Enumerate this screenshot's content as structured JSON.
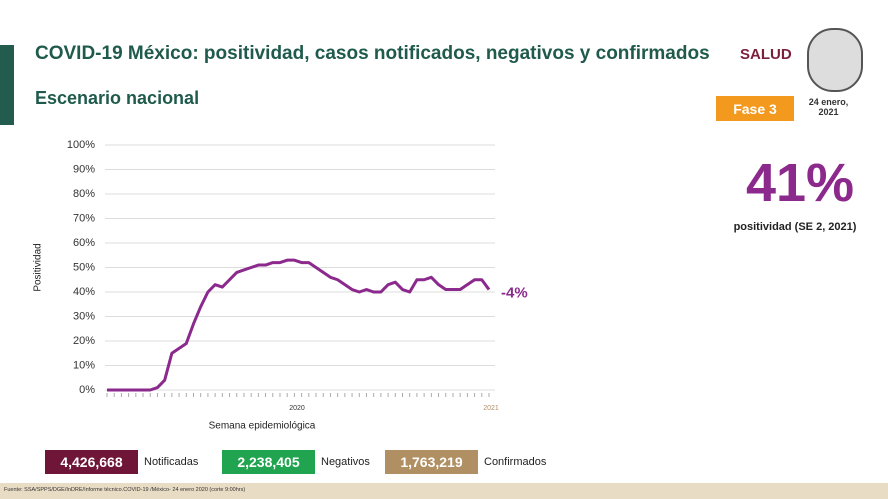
{
  "header": {
    "title": "COVID-19 México: positividad, casos notificados, negativos y confirmados",
    "subtitle": "Escenario nacional",
    "logo": "SALUD",
    "phase": "Fase 3",
    "date": "24 enero, 2021"
  },
  "highlight": {
    "value": "41%",
    "caption": "positividad (SE 2, 2021)"
  },
  "totals": [
    {
      "value": "4,426,668",
      "label": "Notificadas",
      "color": "#6e1538"
    },
    {
      "value": "2,238,405",
      "label": "Negativos",
      "color": "#20a44f"
    },
    {
      "value": "1,763,219",
      "label": "Confirmados",
      "color": "#b08f62"
    }
  ],
  "source": "Fuente: SSA/SPPS/DGE/InDRE/Informe técnico.COVID-19 /México- 24 enero 2020 (corte 9:00hrs)",
  "chart_data": {
    "type": "line",
    "y_label": "Positividad",
    "x_label": "Semana epidemiológica",
    "x_group_labels": [
      "2020",
      "2021"
    ],
    "categories": [
      null,
      null,
      null,
      null,
      null,
      null,
      null,
      null,
      null,
      null,
      null,
      null,
      null,
      null,
      null,
      null,
      null,
      null,
      null,
      null,
      null,
      null,
      null,
      null,
      null,
      null,
      null,
      null,
      null,
      null,
      null,
      null,
      null,
      null,
      null,
      null,
      null,
      null,
      null,
      null,
      null,
      null,
      null,
      null,
      null,
      null,
      null,
      null,
      null,
      null,
      null,
      null,
      null,
      null
    ],
    "series": [
      {
        "name": "Positividad",
        "color": "#8b2a8c",
        "values": [
          0,
          0,
          0,
          0,
          0,
          0,
          0,
          1,
          4,
          15,
          17,
          19,
          27,
          34,
          40,
          43,
          42,
          45,
          48,
          49,
          50,
          51,
          51,
          52,
          52,
          53,
          53,
          52,
          52,
          50,
          48,
          46,
          45,
          43,
          41,
          40,
          41,
          40,
          40,
          43,
          44,
          41,
          40,
          45,
          45,
          46,
          43,
          41,
          41,
          41,
          43,
          45,
          45,
          41
        ]
      }
    ],
    "annotation": "-4%",
    "ylim": [
      0,
      100
    ],
    "yticks": [
      {
        "value": 0,
        "label": "0%"
      },
      {
        "value": 10,
        "label": "10%"
      },
      {
        "value": 20,
        "label": "20%"
      },
      {
        "value": 30,
        "label": "30%"
      },
      {
        "value": 40,
        "label": "40%"
      },
      {
        "value": 50,
        "label": "50%"
      },
      {
        "value": 60,
        "label": "60%"
      },
      {
        "value": 70,
        "label": "70%"
      },
      {
        "value": 80,
        "label": "80%"
      },
      {
        "value": 90,
        "label": "90%"
      },
      {
        "value": 100,
        "label": "100%"
      }
    ],
    "grid": true
  }
}
